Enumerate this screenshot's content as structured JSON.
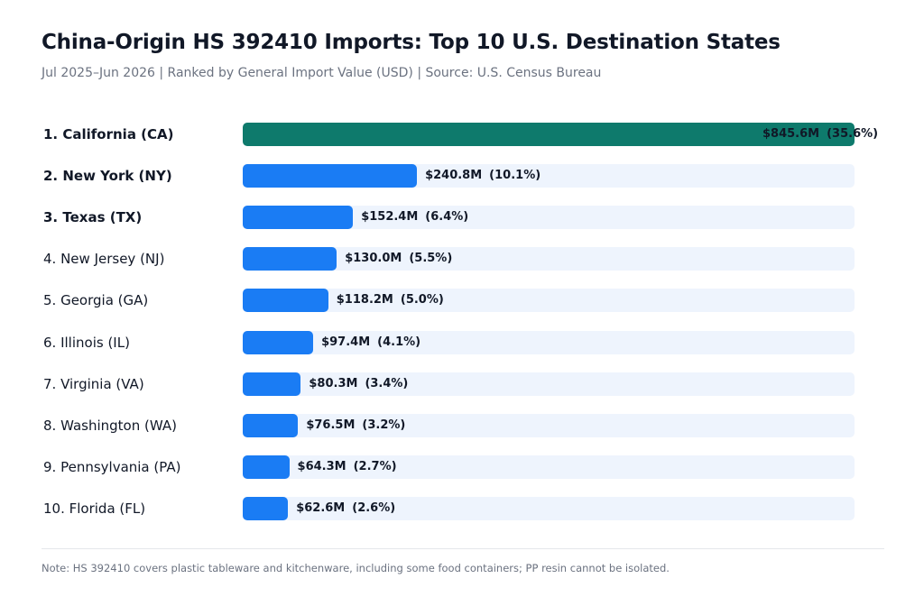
{
  "header": {
    "title": "China-Origin HS 392410 Imports: Top 10 U.S. Destination States",
    "subtitle": "Jul 2025–Jun 2026 | Ranked by General Import Value (USD) | Source: U.S. Census Bureau"
  },
  "colors": {
    "highlight": "#0e7a6c",
    "bar": "#1a7cf4",
    "track": "#eef4fd"
  },
  "footer": {
    "note": "Note: HS 392410 covers plastic tableware and kitchenware, including some food containers; PP resin cannot be isolated."
  },
  "chart_data": {
    "type": "bar",
    "orientation": "horizontal",
    "title": "China-Origin HS 392410 Imports: Top 10 U.S. Destination States",
    "subtitle": "Jul 2025–Jun 2026 | Ranked by General Import Value (USD) | Source: U.S. Census Bureau",
    "xlim": [
      0,
      845.6
    ],
    "grid": false,
    "categories": [
      "1. California (CA)",
      "2. New York (NY)",
      "3. Texas (TX)",
      "4. New Jersey (NJ)",
      "5. Georgia (GA)",
      "6. Illinois (IL)",
      "7. Virginia (VA)",
      "8. Washington (WA)",
      "9. Pennsylvania (PA)",
      "10. Florida (FL)"
    ],
    "values": [
      845.6,
      240.8,
      152.4,
      130.0,
      118.2,
      97.4,
      80.3,
      76.5,
      64.3,
      62.6
    ],
    "value_labels": [
      "$845.6M",
      "$240.8M",
      "$152.4M",
      "$130.0M",
      "$118.2M",
      "$97.4M",
      "$80.3M",
      "$76.5M",
      "$64.3M",
      "$62.6M"
    ],
    "share_labels": [
      "(35.6%)",
      "(10.1%)",
      "(6.4%)",
      "(5.5%)",
      "(5.0%)",
      "(4.1%)",
      "(3.4%)",
      "(3.2%)",
      "(2.7%)",
      "(2.6%)"
    ],
    "bold_top": 3
  }
}
